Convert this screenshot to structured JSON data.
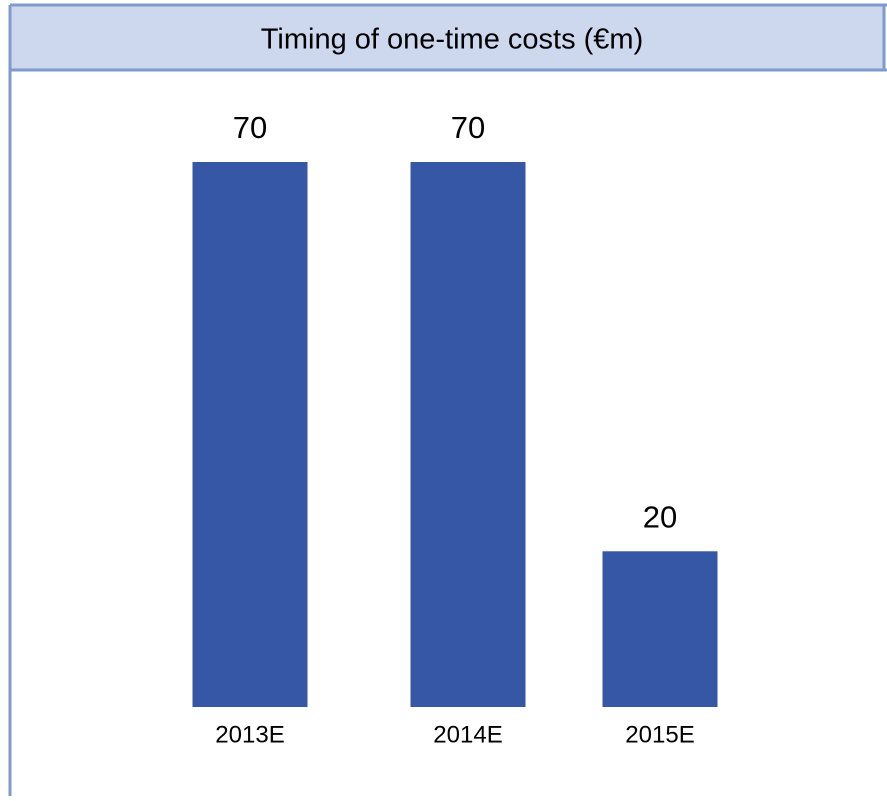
{
  "chart_data": {
    "type": "bar",
    "title": "Timing of one-time costs (€m)",
    "categories": [
      "2013E",
      "2014E",
      "2015E"
    ],
    "values": [
      70,
      70,
      20
    ],
    "color": "#3657a6"
  }
}
